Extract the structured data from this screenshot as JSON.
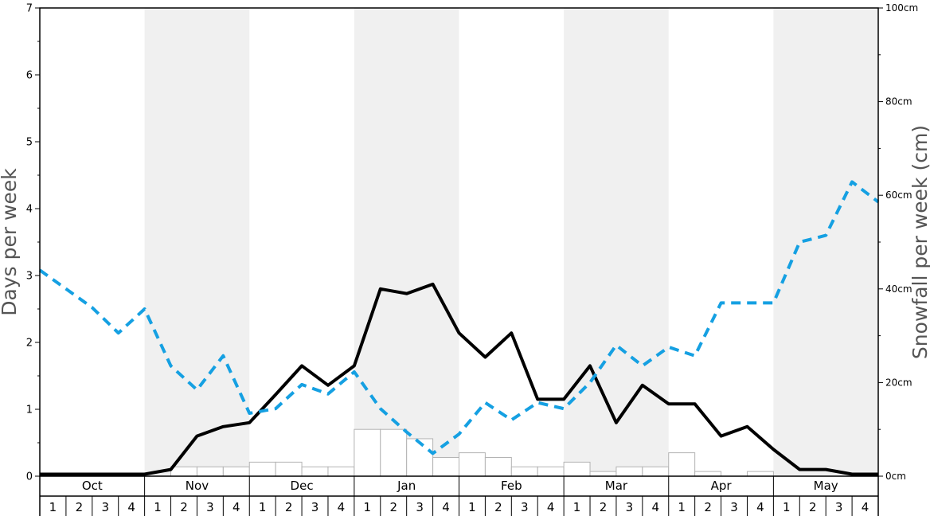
{
  "chart_data": {
    "type": "bar+line",
    "left_axis": {
      "label": "Days per week",
      "range": [
        0,
        7
      ],
      "ticks": [
        "0",
        "1",
        "2",
        "3",
        "4",
        "5",
        "6",
        "7"
      ]
    },
    "right_axis": {
      "label": "Snowfall per week (cm)",
      "range": [
        0,
        100
      ],
      "ticks": [
        "0cm",
        "20cm",
        "40cm",
        "60cm",
        "80cm",
        "100cm"
      ]
    },
    "months": [
      "Oct",
      "Nov",
      "Dec",
      "Jan",
      "Feb",
      "Mar",
      "Apr",
      "May"
    ],
    "weeks": [
      "1",
      "2",
      "3",
      "4"
    ],
    "shaded_months": [
      "Nov",
      "Jan",
      "Mar",
      "May"
    ],
    "series": [
      {
        "kind": "bar",
        "axis": "right",
        "values": [
          0,
          0,
          0,
          0,
          0,
          2,
          2,
          2,
          3,
          3,
          2,
          2,
          10,
          10,
          8,
          4,
          5,
          4,
          2,
          2,
          3,
          1,
          2,
          2,
          5,
          1,
          0,
          1,
          0,
          0,
          0,
          0
        ]
      },
      {
        "kind": "line",
        "axis": "left",
        "style": "solid",
        "color": "#000000",
        "values": [
          0.03,
          0.03,
          0.03,
          0.03,
          0.03,
          0.1,
          0.6,
          0.74,
          0.8,
          1.22,
          1.65,
          1.36,
          1.65,
          2.8,
          2.73,
          2.87,
          2.14,
          1.78,
          2.14,
          1.15,
          1.15,
          1.65,
          0.8,
          1.36,
          1.08,
          1.08,
          0.6,
          0.74,
          0.4,
          0.1,
          0.1,
          0.03,
          0.03
        ]
      },
      {
        "kind": "line",
        "axis": "left",
        "style": "dashed",
        "color": "#15a0e2",
        "values": [
          3.08,
          2.8,
          2.52,
          2.14,
          2.5,
          1.65,
          1.29,
          1.8,
          0.94,
          1.01,
          1.37,
          1.23,
          1.56,
          1.01,
          0.66,
          0.34,
          0.63,
          1.1,
          0.84,
          1.1,
          1.01,
          1.4,
          1.96,
          1.65,
          1.93,
          1.8,
          2.59,
          2.59,
          2.59,
          3.5,
          3.6,
          4.4,
          4.1
        ]
      }
    ],
    "colors": {
      "shade": "#f0f0f0",
      "bar_fill": "#ffffff",
      "bar_stroke": "#b3b3b3",
      "axis_title": "#555555"
    }
  }
}
